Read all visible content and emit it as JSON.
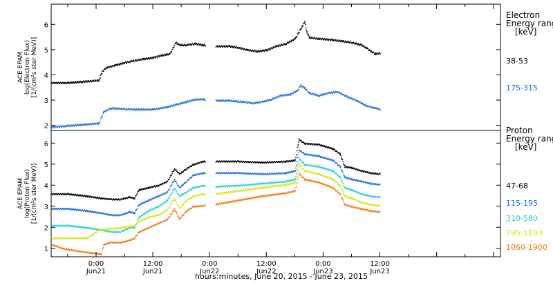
{
  "chart_data": {
    "type": "scatter",
    "x_label": "hours:minutes, June 20, 2015 - June 23, 2015",
    "x_range_hours": [
      -9.5,
      85.5
    ],
    "x_ticks": [
      {
        "t": 0,
        "top": "0:00",
        "bottom": "Jun21"
      },
      {
        "t": 12,
        "top": "12:00",
        "bottom": "Jun21"
      },
      {
        "t": 24,
        "top": "0:00",
        "bottom": "Jun22"
      },
      {
        "t": 36,
        "top": "12:00",
        "bottom": "Jun22"
      },
      {
        "t": 48,
        "top": "0:00",
        "bottom": "Jun23"
      },
      {
        "t": 60,
        "top": "12:00",
        "bottom": "Jun23"
      }
    ],
    "panels": [
      {
        "id": "electron",
        "ylabel_lines": [
          "ACE EPAM",
          "log(Electron Flux)",
          "[1/(cm²s ster MeV)]"
        ],
        "ylim": [
          1.8,
          6.8
        ],
        "yticks": [
          2,
          3,
          4,
          5,
          6
        ],
        "legend_title": [
          "Electron",
          "Energy range",
          "[keV]"
        ],
        "series": [
          {
            "name": "38-53",
            "color": "#000000",
            "points": [
              [
                -9.5,
                3.7
              ],
              [
                -6,
                3.7
              ],
              [
                -3,
                3.75
              ],
              [
                0.5,
                3.8
              ],
              [
                1.2,
                4.15
              ],
              [
                2,
                4.3
              ],
              [
                4,
                4.4
              ],
              [
                7,
                4.55
              ],
              [
                10,
                4.65
              ],
              [
                12,
                4.7
              ],
              [
                14,
                4.8
              ],
              [
                15.5,
                4.85
              ],
              [
                16.8,
                5.3
              ],
              [
                17.5,
                5.2
              ],
              [
                19,
                5.2
              ],
              [
                21,
                5.25
              ],
              [
                22.5,
                5.2
              ],
              [
                25,
                5.15
              ],
              [
                28,
                5.15
              ],
              [
                30,
                5.1
              ],
              [
                32,
                5.0
              ],
              [
                34,
                4.95
              ],
              [
                36,
                5.0
              ],
              [
                38,
                5.15
              ],
              [
                40,
                5.25
              ],
              [
                42,
                5.45
              ],
              [
                43.5,
                5.95
              ],
              [
                44,
                6.1
              ],
              [
                44.5,
                5.7
              ],
              [
                45,
                5.5
              ],
              [
                47,
                5.45
              ],
              [
                50,
                5.4
              ],
              [
                52,
                5.35
              ],
              [
                54,
                5.3
              ],
              [
                56,
                5.2
              ],
              [
                57,
                5.1
              ],
              [
                58,
                4.95
              ],
              [
                59,
                4.85
              ],
              [
                60,
                4.88
              ]
            ]
          },
          {
            "name": "175-315",
            "color": "#1a6fd6",
            "points": [
              [
                -9.5,
                1.95
              ],
              [
                -6,
                2.0
              ],
              [
                -3,
                2.05
              ],
              [
                0.5,
                2.1
              ],
              [
                1.5,
                2.55
              ],
              [
                3,
                2.7
              ],
              [
                8,
                2.65
              ],
              [
                12,
                2.65
              ],
              [
                15,
                2.75
              ],
              [
                17,
                2.85
              ],
              [
                19,
                2.95
              ],
              [
                21,
                3.05
              ],
              [
                22.5,
                3.05
              ],
              [
                25,
                3.0
              ],
              [
                28,
                3.0
              ],
              [
                31,
                2.95
              ],
              [
                33,
                2.9
              ],
              [
                35,
                2.95
              ],
              [
                37,
                3.05
              ],
              [
                39,
                3.2
              ],
              [
                41,
                3.25
              ],
              [
                42.5,
                3.4
              ],
              [
                43.2,
                3.6
              ],
              [
                44,
                3.5
              ],
              [
                45,
                3.3
              ],
              [
                47,
                3.2
              ],
              [
                49,
                3.3
              ],
              [
                51,
                3.35
              ],
              [
                53,
                3.15
              ],
              [
                55,
                3.0
              ],
              [
                57,
                2.8
              ],
              [
                59,
                2.7
              ],
              [
                60,
                2.65
              ]
            ]
          }
        ]
      },
      {
        "id": "proton",
        "ylabel_lines": [
          "ACE EPAM",
          "log(Proton Flux)",
          "[1/(cm²s ster MeV)]"
        ],
        "ylim": [
          0.6,
          6.6
        ],
        "yticks": [
          1,
          2,
          3,
          4,
          5,
          6
        ],
        "legend_title": [
          "Proton",
          "Energy range",
          "[keV]"
        ],
        "series": [
          {
            "name": "47-68",
            "color": "#000000",
            "points": [
              [
                -9.5,
                3.6
              ],
              [
                -6,
                3.6
              ],
              [
                -2,
                3.5
              ],
              [
                1,
                3.4
              ],
              [
                3,
                3.35
              ],
              [
                5,
                3.35
              ],
              [
                7,
                3.45
              ],
              [
                8,
                3.4
              ],
              [
                9,
                3.8
              ],
              [
                11,
                3.9
              ],
              [
                13,
                4.0
              ],
              [
                15,
                4.2
              ],
              [
                16.5,
                4.8
              ],
              [
                17.5,
                4.55
              ],
              [
                19,
                4.8
              ],
              [
                20.5,
                5.0
              ],
              [
                22.5,
                5.15
              ],
              [
                25,
                5.15
              ],
              [
                30,
                5.15
              ],
              [
                35,
                5.1
              ],
              [
                40,
                5.15
              ],
              [
                42,
                5.2
              ],
              [
                42.8,
                6.2
              ],
              [
                44,
                6.0
              ],
              [
                47,
                5.95
              ],
              [
                50,
                5.75
              ],
              [
                51.5,
                5.5
              ],
              [
                52.5,
                4.9
              ],
              [
                54,
                4.85
              ],
              [
                56,
                4.7
              ],
              [
                58,
                4.6
              ],
              [
                60,
                4.55
              ]
            ]
          },
          {
            "name": "115-195",
            "color": "#1a6fd6",
            "points": [
              [
                -9.5,
                2.9
              ],
              [
                -6,
                2.9
              ],
              [
                -2,
                2.8
              ],
              [
                1,
                2.7
              ],
              [
                3,
                2.6
              ],
              [
                5,
                2.6
              ],
              [
                7,
                2.75
              ],
              [
                8,
                2.7
              ],
              [
                9,
                3.1
              ],
              [
                11,
                3.3
              ],
              [
                13,
                3.5
              ],
              [
                15,
                3.7
              ],
              [
                16.5,
                4.3
              ],
              [
                17.5,
                3.9
              ],
              [
                19,
                4.2
              ],
              [
                20.5,
                4.5
              ],
              [
                22.5,
                4.6
              ],
              [
                25,
                4.6
              ],
              [
                30,
                4.6
              ],
              [
                35,
                4.55
              ],
              [
                40,
                4.6
              ],
              [
                42,
                4.7
              ],
              [
                42.8,
                5.7
              ],
              [
                44,
                5.5
              ],
              [
                47,
                5.4
              ],
              [
                50,
                5.2
              ],
              [
                51.5,
                4.9
              ],
              [
                52.5,
                4.4
              ],
              [
                54,
                4.3
              ],
              [
                56,
                4.2
              ],
              [
                58,
                4.1
              ],
              [
                60,
                4.05
              ]
            ]
          },
          {
            "name": "310-580",
            "color": "#22d3c9",
            "points": [
              [
                -9.5,
                2.1
              ],
              [
                -6,
                2.1
              ],
              [
                -2,
                2.0
              ],
              [
                1,
                1.9
              ],
              [
                3,
                1.8
              ],
              [
                5,
                1.8
              ],
              [
                7,
                2.0
              ],
              [
                8,
                2.0
              ],
              [
                9,
                2.5
              ],
              [
                11,
                2.8
              ],
              [
                13,
                3.0
              ],
              [
                15,
                3.3
              ],
              [
                16.5,
                3.9
              ],
              [
                17.5,
                3.5
              ],
              [
                19,
                3.7
              ],
              [
                20.5,
                3.9
              ],
              [
                22.5,
                4.0
              ],
              [
                25,
                3.95
              ],
              [
                30,
                4.0
              ],
              [
                35,
                4.1
              ],
              [
                40,
                4.2
              ],
              [
                42,
                4.3
              ],
              [
                42.8,
                5.3
              ],
              [
                44,
                5.0
              ],
              [
                47,
                4.9
              ],
              [
                50,
                4.7
              ],
              [
                51.5,
                4.4
              ],
              [
                52.5,
                3.9
              ],
              [
                54,
                3.8
              ],
              [
                56,
                3.6
              ],
              [
                58,
                3.5
              ],
              [
                60,
                3.45
              ]
            ]
          },
          {
            "name": "795-1193",
            "color": "#d4e80f",
            "points": [
              [
                -9.5,
                1.5
              ],
              [
                -6,
                1.5
              ],
              [
                -2,
                1.5
              ],
              [
                0.5,
                1.9
              ],
              [
                3,
                1.95
              ],
              [
                5,
                2.0
              ],
              [
                7,
                2.05
              ],
              [
                8,
                2.1
              ],
              [
                9,
                2.3
              ],
              [
                11,
                2.5
              ],
              [
                13,
                2.6
              ],
              [
                15,
                2.85
              ],
              [
                16.5,
                3.4
              ],
              [
                17.5,
                2.9
              ],
              [
                19,
                3.3
              ],
              [
                20.5,
                3.5
              ],
              [
                22.5,
                3.6
              ],
              [
                25,
                3.6
              ],
              [
                30,
                3.75
              ],
              [
                35,
                3.9
              ],
              [
                40,
                4.05
              ],
              [
                42,
                4.15
              ],
              [
                42.8,
                5.0
              ],
              [
                44,
                4.7
              ],
              [
                47,
                4.55
              ],
              [
                50,
                4.3
              ],
              [
                51.5,
                4.0
              ],
              [
                52.5,
                3.5
              ],
              [
                54,
                3.4
              ],
              [
                56,
                3.2
              ],
              [
                58,
                3.1
              ],
              [
                60,
                3.05
              ]
            ]
          },
          {
            "name": "1060-1900",
            "color": "#f07a12",
            "points": [
              [
                -9.5,
                1.2
              ],
              [
                -7,
                1.0
              ],
              [
                -4,
                0.9
              ],
              [
                -1,
                0.8
              ],
              [
                1,
                0.75
              ],
              [
                1.5,
                1.2
              ],
              [
                3,
                1.3
              ],
              [
                5,
                1.3
              ],
              [
                7,
                1.4
              ],
              [
                8,
                1.5
              ],
              [
                9,
                1.8
              ],
              [
                11,
                2.0
              ],
              [
                13,
                2.2
              ],
              [
                15,
                2.4
              ],
              [
                16.5,
                2.9
              ],
              [
                17.5,
                2.4
              ],
              [
                19,
                2.8
              ],
              [
                20.5,
                3.0
              ],
              [
                22.5,
                3.05
              ],
              [
                25,
                3.1
              ],
              [
                30,
                3.3
              ],
              [
                35,
                3.5
              ],
              [
                40,
                3.65
              ],
              [
                42,
                3.75
              ],
              [
                42.8,
                4.6
              ],
              [
                44,
                4.3
              ],
              [
                47,
                4.15
              ],
              [
                50,
                3.9
              ],
              [
                51.5,
                3.6
              ],
              [
                52.5,
                3.1
              ],
              [
                54,
                3.0
              ],
              [
                56,
                2.9
              ],
              [
                58,
                2.8
              ],
              [
                60,
                2.75
              ]
            ]
          }
        ]
      }
    ]
  }
}
